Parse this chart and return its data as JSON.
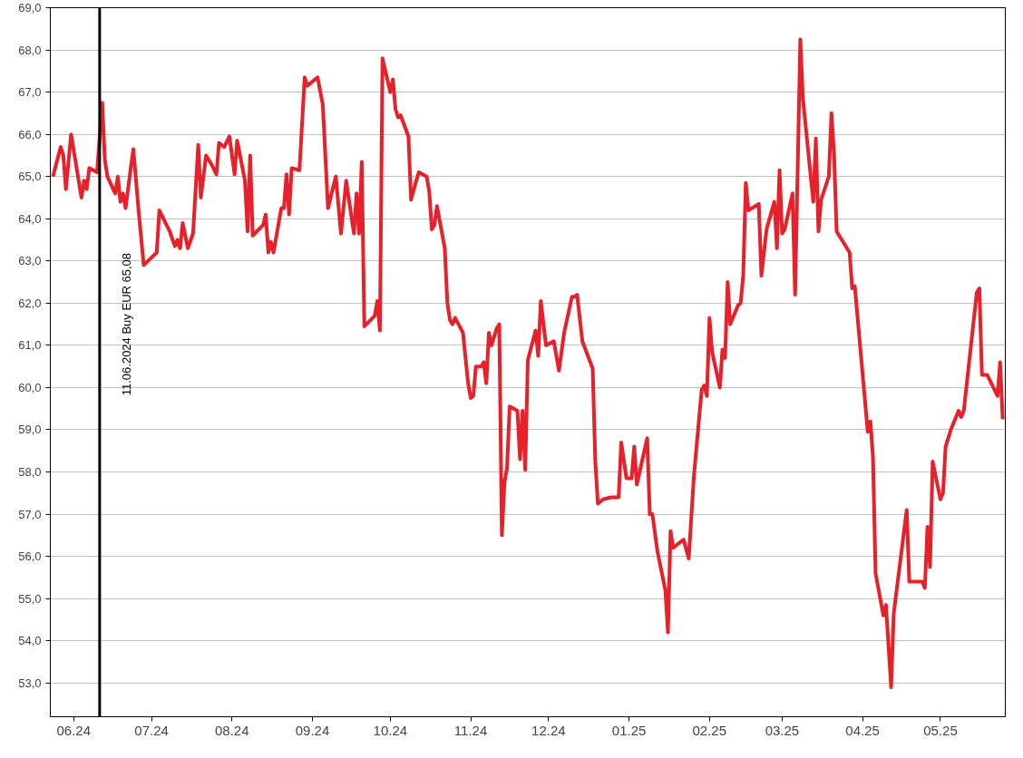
{
  "chart_data": {
    "type": "line",
    "xlim": [
      "2024-05-23",
      "2025-05-26"
    ],
    "ylim": [
      52.2,
      69.0
    ],
    "xticks": [
      {
        "value": "2024-06-01",
        "label": "06.24"
      },
      {
        "value": "2024-07-01",
        "label": "07.24"
      },
      {
        "value": "2024-08-01",
        "label": "08.24"
      },
      {
        "value": "2024-09-01",
        "label": "09.24"
      },
      {
        "value": "2024-10-01",
        "label": "10.24"
      },
      {
        "value": "2024-11-01",
        "label": "11.24"
      },
      {
        "value": "2024-12-01",
        "label": "12.24"
      },
      {
        "value": "2025-01-01",
        "label": "01.25"
      },
      {
        "value": "2025-02-01",
        "label": "02.25"
      },
      {
        "value": "2025-03-01",
        "label": "03.25"
      },
      {
        "value": "2025-04-01",
        "label": "04.25"
      },
      {
        "value": "2025-05-01",
        "label": "05.25"
      }
    ],
    "yticks": [
      {
        "value": 53,
        "label": "53,0"
      },
      {
        "value": 54,
        "label": "54,0"
      },
      {
        "value": 55,
        "label": "55,0"
      },
      {
        "value": 56,
        "label": "56,0"
      },
      {
        "value": 57,
        "label": "57,0"
      },
      {
        "value": 58,
        "label": "58,0"
      },
      {
        "value": 59,
        "label": "59,0"
      },
      {
        "value": 60,
        "label": "60,0"
      },
      {
        "value": 61,
        "label": "61,0"
      },
      {
        "value": 62,
        "label": "62,0"
      },
      {
        "value": 63,
        "label": "63,0"
      },
      {
        "value": 64,
        "label": "64,0"
      },
      {
        "value": 65,
        "label": "65,0"
      },
      {
        "value": 66,
        "label": "66,0"
      },
      {
        "value": 67,
        "label": "67,0"
      },
      {
        "value": 68,
        "label": "68,0"
      },
      {
        "value": 69,
        "label": "69,0"
      }
    ],
    "grid": "y",
    "marker": "none",
    "line_style": "solid",
    "ref_lines": [
      {
        "axis": "x",
        "value": "2024-06-11",
        "label": "11.06.2024 Buy EUR 65,08",
        "color": "#000000",
        "line_style": "solid"
      }
    ],
    "series": [
      {
        "color": "#e8202a",
        "x": [
          "2024-05-24",
          "2024-05-27",
          "2024-05-28",
          "2024-05-29",
          "2024-05-31",
          "2024-06-04",
          "2024-06-05",
          "2024-06-06",
          "2024-06-07",
          "2024-06-10",
          "2024-06-12",
          "2024-06-13",
          "2024-06-14",
          "2024-06-17",
          "2024-06-18",
          "2024-06-19",
          "2024-06-20",
          "2024-06-21",
          "2024-06-23",
          "2024-06-24",
          "2024-06-26",
          "2024-06-28",
          "2024-07-03",
          "2024-07-04",
          "2024-07-08",
          "2024-07-10",
          "2024-07-11",
          "2024-07-12",
          "2024-07-13",
          "2024-07-15",
          "2024-07-17",
          "2024-07-19",
          "2024-07-20",
          "2024-07-22",
          "2024-07-24",
          "2024-07-26",
          "2024-07-27",
          "2024-07-29",
          "2024-07-31",
          "2024-08-02",
          "2024-08-03",
          "2024-08-06",
          "2024-08-07",
          "2024-08-08",
          "2024-08-09",
          "2024-08-13",
          "2024-08-14",
          "2024-08-15",
          "2024-08-16",
          "2024-08-17",
          "2024-08-20",
          "2024-08-21",
          "2024-08-22",
          "2024-08-23",
          "2024-08-24",
          "2024-08-27",
          "2024-08-29",
          "2024-08-30",
          "2024-09-03",
          "2024-09-05",
          "2024-09-07",
          "2024-09-10",
          "2024-09-12",
          "2024-09-14",
          "2024-09-17",
          "2024-09-18",
          "2024-09-19",
          "2024-09-20",
          "2024-09-21",
          "2024-09-25",
          "2024-09-26",
          "2024-09-27",
          "2024-09-28",
          "2024-10-01",
          "2024-10-02",
          "2024-10-03",
          "2024-10-04",
          "2024-10-05",
          "2024-10-08",
          "2024-10-09",
          "2024-10-11",
          "2024-10-12",
          "2024-10-15",
          "2024-10-16",
          "2024-10-17",
          "2024-10-18",
          "2024-10-19",
          "2024-10-22",
          "2024-10-23",
          "2024-10-24",
          "2024-10-25",
          "2024-10-26",
          "2024-10-29",
          "2024-10-31",
          "2024-11-01",
          "2024-11-02",
          "2024-11-03",
          "2024-11-05",
          "2024-11-06",
          "2024-11-07",
          "2024-11-08",
          "2024-11-09",
          "2024-11-11",
          "2024-11-12",
          "2024-11-13",
          "2024-11-14",
          "2024-11-15",
          "2024-11-16",
          "2024-11-19",
          "2024-11-20",
          "2024-11-21",
          "2024-11-22",
          "2024-11-23",
          "2024-11-26",
          "2024-11-27",
          "2024-11-28",
          "2024-11-30",
          "2024-12-03",
          "2024-12-05",
          "2024-12-07",
          "2024-12-10",
          "2024-12-11",
          "2024-12-12",
          "2024-12-14",
          "2024-12-18",
          "2024-12-19",
          "2024-12-20",
          "2024-12-22",
          "2024-12-25",
          "2024-12-28",
          "2024-12-29",
          "2024-12-31",
          "2025-01-02",
          "2025-01-03",
          "2025-01-04",
          "2025-01-08",
          "2025-01-09",
          "2025-01-10",
          "2025-01-12",
          "2025-01-15",
          "2025-01-16",
          "2025-01-17",
          "2025-01-18",
          "2025-01-22",
          "2025-01-24",
          "2025-01-26",
          "2025-01-29",
          "2025-01-30",
          "2025-01-31",
          "2025-02-01",
          "2025-02-02",
          "2025-02-05",
          "2025-02-06",
          "2025-02-07",
          "2025-02-08",
          "2025-02-09",
          "2025-02-12",
          "2025-02-13",
          "2025-02-14",
          "2025-02-15",
          "2025-02-16",
          "2025-02-20",
          "2025-02-21",
          "2025-02-23",
          "2025-02-26",
          "2025-02-27",
          "2025-02-28",
          "2025-03-01",
          "2025-03-02",
          "2025-03-05",
          "2025-03-06",
          "2025-03-08",
          "2025-03-09",
          "2025-03-13",
          "2025-03-14",
          "2025-03-15",
          "2025-03-16",
          "2025-03-19",
          "2025-03-20",
          "2025-03-21",
          "2025-03-22",
          "2025-03-27",
          "2025-03-28",
          "2025-03-29",
          "2025-04-03",
          "2025-04-04",
          "2025-04-05",
          "2025-04-06",
          "2025-04-09",
          "2025-04-10",
          "2025-04-12",
          "2025-04-13",
          "2025-04-18",
          "2025-04-19",
          "2025-04-24",
          "2025-04-25",
          "2025-04-26",
          "2025-04-27",
          "2025-04-28",
          "2025-05-01",
          "2025-05-02",
          "2025-05-03",
          "2025-05-05",
          "2025-05-08",
          "2025-05-09",
          "2025-05-10",
          "2025-05-15",
          "2025-05-16",
          "2025-05-17",
          "2025-05-19",
          "2025-05-23",
          "2025-05-24",
          "2025-05-25"
        ],
        "values": [
          65.0,
          65.7,
          65.5,
          64.7,
          66.0,
          64.5,
          64.9,
          64.7,
          65.2,
          65.1,
          66.75,
          65.4,
          65.0,
          64.6,
          65.0,
          64.4,
          64.6,
          64.25,
          65.2,
          65.65,
          64.2,
          62.9,
          63.2,
          64.2,
          63.7,
          63.35,
          63.5,
          63.3,
          63.9,
          63.3,
          63.65,
          65.75,
          64.5,
          65.5,
          65.3,
          65.05,
          65.8,
          65.7,
          65.95,
          65.05,
          65.85,
          64.9,
          63.7,
          65.5,
          63.6,
          63.85,
          64.1,
          63.2,
          63.45,
          63.2,
          64.25,
          64.25,
          65.05,
          64.1,
          65.2,
          65.15,
          67.35,
          67.15,
          67.35,
          66.7,
          64.25,
          65.0,
          63.65,
          64.9,
          63.65,
          64.6,
          63.65,
          65.35,
          61.45,
          61.7,
          62.05,
          61.35,
          67.8,
          67.0,
          67.3,
          66.6,
          66.4,
          66.45,
          65.95,
          64.45,
          64.9,
          65.1,
          65.0,
          64.65,
          63.75,
          63.85,
          64.3,
          63.3,
          62.0,
          61.6,
          61.5,
          61.65,
          61.3,
          60.1,
          59.75,
          59.8,
          60.5,
          60.5,
          60.6,
          60.1,
          61.3,
          61.0,
          61.4,
          61.5,
          56.5,
          57.75,
          58.1,
          59.55,
          59.45,
          58.3,
          59.45,
          58.05,
          60.65,
          61.35,
          60.75,
          62.05,
          61.0,
          61.1,
          60.4,
          61.3,
          62.15,
          62.15,
          62.2,
          61.1,
          60.45,
          58.25,
          57.25,
          57.35,
          57.4,
          57.4,
          58.7,
          57.85,
          57.85,
          58.6,
          57.7,
          58.8,
          57.0,
          57.0,
          56.1,
          55.2,
          54.2,
          56.6,
          56.2,
          56.4,
          55.95,
          57.9,
          59.95,
          60.05,
          59.8,
          61.65,
          60.85,
          60.0,
          60.9,
          60.7,
          62.5,
          61.5,
          61.95,
          62.0,
          62.65,
          64.85,
          64.2,
          64.35,
          62.65,
          63.75,
          64.4,
          63.3,
          65.15,
          63.65,
          63.75,
          64.6,
          62.2,
          68.25,
          66.85,
          64.4,
          65.9,
          63.7,
          64.45,
          65.0,
          66.5,
          65.55,
          63.7,
          63.2,
          62.35,
          62.4,
          58.95,
          59.2,
          58.35,
          55.6,
          54.6,
          54.85,
          52.9,
          54.65,
          57.1,
          55.4,
          55.4,
          55.25,
          56.7,
          55.75,
          58.25,
          57.35,
          57.5,
          58.6,
          59.0,
          59.45,
          59.3,
          59.45,
          62.25,
          62.35,
          60.3,
          60.3,
          59.8,
          60.6,
          59.25
        ]
      }
    ]
  }
}
